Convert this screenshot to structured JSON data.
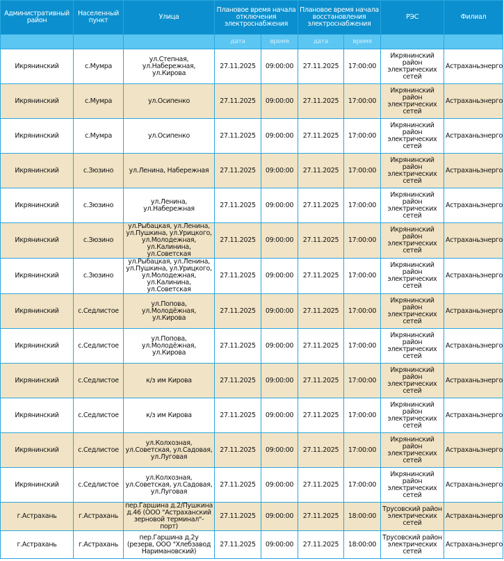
{
  "headers": [
    "Административный район",
    "Населенный пункт",
    "Улица",
    "Плановое время начала отключения электроснабжения",
    "Плановое время начала восстановления электроснабжения",
    "РЭС",
    "Филиал"
  ],
  "subheaders": [
    "дата",
    "время",
    "дата",
    "время"
  ],
  "colors": {
    "header": "#0b8fce",
    "subheader": "#5cc6f3",
    "alt_row": "#f1e3c5",
    "border": "#2aa6dd"
  },
  "rows": [
    [
      "Икрянинский",
      "с.Мумра",
      "ул.Степная, ул.Набережная, ул.Кирова",
      "27.11.2025",
      "09:00:00",
      "27.11.2025",
      "17:00:00",
      "Икрянинский район электрических сетей",
      "Астраханьэнерго"
    ],
    [
      "Икрянинский",
      "с.Мумра",
      "ул.Осипенко",
      "27.11.2025",
      "09:00:00",
      "27.11.2025",
      "17:00:00",
      "Икрянинский район электрических сетей",
      "Астраханьэнерго"
    ],
    [
      "Икрянинский",
      "с.Мумра",
      "ул.Осипенко",
      "27.11.2025",
      "09:00:00",
      "27.11.2025",
      "17:00:00",
      "Икрянинский район электрических сетей",
      "Астраханьэнерго"
    ],
    [
      "Икрянинский",
      "с.Зюзино",
      "ул.Ленина, Набережная",
      "27.11.2025",
      "09:00:00",
      "27.11.2025",
      "17:00:00",
      "Икрянинский район электрических сетей",
      "Астраханьэнерго"
    ],
    [
      "Икрянинский",
      "с.Зюзино",
      "ул.Ленина, ул.Набережная",
      "27.11.2025",
      "09:00:00",
      "27.11.2025",
      "17:00:00",
      "Икрянинский район электрических сетей",
      "Астраханьэнерго"
    ],
    [
      "Икрянинский",
      "с.Зюзино",
      "ул.Рыбацкая, ул.Ленина, ул.Пушкина, ул.Урицкого, ул.Молодежная, ул.Калинина, ул.Советская",
      "27.11.2025",
      "09:00:00",
      "27.11.2025",
      "17:00:00",
      "Икрянинский район электрических сетей",
      "Астраханьэнерго"
    ],
    [
      "Икрянинский",
      "с.Зюзино",
      "ул.Рыбацкая, ул.Ленина, ул.Пушкина, ул.Урицкого, ул.Молодежная, ул.Калинина, ул.Советская",
      "27.11.2025",
      "09:00:00",
      "27.11.2025",
      "17:00:00",
      "Икрянинский район электрических сетей",
      "Астраханьэнерго"
    ],
    [
      "Икрянинский",
      "с.Седлистое",
      "ул.Попова, ул.Молодёжная, ул.Кирова",
      "27.11.2025",
      "09:00:00",
      "27.11.2025",
      "17:00:00",
      "Икрянинский район электрических сетей",
      "Астраханьэнерго"
    ],
    [
      "Икрянинский",
      "с.Седлистое",
      "ул.Попова, ул.Молодёжная, ул.Кирова",
      "27.11.2025",
      "09:00:00",
      "27.11.2025",
      "17:00:00",
      "Икрянинский район электрических сетей",
      "Астраханьэнерго"
    ],
    [
      "Икрянинский",
      "с.Седлистое",
      "к/з им Кирова",
      "27.11.2025",
      "09:00:00",
      "27.11.2025",
      "17:00:00",
      "Икрянинский район электрических сетей",
      "Астраханьэнерго"
    ],
    [
      "Икрянинский",
      "с.Седлистое",
      "к/з им Кирова",
      "27.11.2025",
      "09:00:00",
      "27.11.2025",
      "17:00:00",
      "Икрянинский район электрических сетей",
      "Астраханьэнерго"
    ],
    [
      "Икрянинский",
      "с.Седлистое",
      "ул.Колхозная, ул.Советская, ул.Садовая, ул.Луговая",
      "27.11.2025",
      "09:00:00",
      "27.11.2025",
      "17:00:00",
      "Икрянинский район электрических сетей",
      "Астраханьэнерго"
    ],
    [
      "Икрянинский",
      "с.Седлистое",
      "ул.Колхозная, ул.Советская, ул.Садовая, ул.Луговая",
      "27.11.2025",
      "09:00:00",
      "27.11.2025",
      "17:00:00",
      "Икрянинский район электрических сетей",
      "Астраханьэнерго"
    ],
    [
      "г.Астрахань",
      "г.Астрахань",
      "пер.Гаршина д.2/Пушкина д.46 (ООО \"Астраханский зерновой терминал\"-порт)",
      "27.11.2025",
      "09:00:00",
      "27.11.2025",
      "18:00:00",
      "Трусовский район электрических сетей",
      "Астраханьэнерго"
    ],
    [
      "г.Астрахань",
      "г.Астрахань",
      "пер.Гаршина д.2у (резерв, ООО \"Хлебзавод Наримановский)",
      "27.11.2025",
      "09:00:00",
      "27.11.2025",
      "18:00:00",
      "Трусовский район электрических сетей",
      "Астраханьэнерго"
    ]
  ]
}
